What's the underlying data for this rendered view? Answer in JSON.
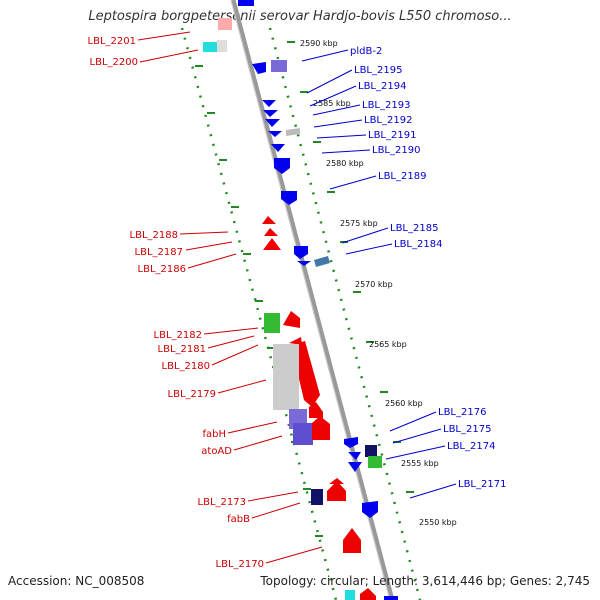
{
  "title": "Leptospira borgpetersenii serovar Hardjo-bovis L550 chromoso...",
  "accession_text": "Accession: NC_008508",
  "topology_text": "Topology: circular; Length: 3,614,446 bp; Genes: 2,745",
  "colors": {
    "backbone": "#888888",
    "plus_strand_label": "#cc0000",
    "minus_strand_label": "#0000cc",
    "gene_red": "#ee0000",
    "gene_blue": "#0000ee",
    "gene_green": "#33bb33",
    "gene_purple": "#7a6ad8",
    "gene_navy": "#111166",
    "gene_grey": "#bbbbbb",
    "gene_cyan": "#22dddd",
    "tick_green": "#228822"
  },
  "ticks": [
    "2590 kbp",
    "2585 kbp",
    "2580 kbp",
    "2575 kbp",
    "2570 kbp",
    "2565 kbp",
    "2560 kbp",
    "2555 kbp",
    "2550 kbp"
  ],
  "left_labels": [
    "LBL_2201",
    "LBL_2200",
    "LBL_2188",
    "LBL_2187",
    "LBL_2186",
    "LBL_2182",
    "LBL_2181",
    "LBL_2180",
    "LBL_2179",
    "fabH",
    "atoAD",
    "LBL_2173",
    "fabB",
    "LBL_2170"
  ],
  "right_labels": [
    "pldB-2",
    "LBL_2195",
    "LBL_2194",
    "LBL_2193",
    "LBL_2192",
    "LBL_2191",
    "LBL_2190",
    "LBL_2189",
    "LBL_2185",
    "LBL_2184",
    "LBL_2176",
    "LBL_2175",
    "LBL_2174",
    "LBL_2171"
  ]
}
